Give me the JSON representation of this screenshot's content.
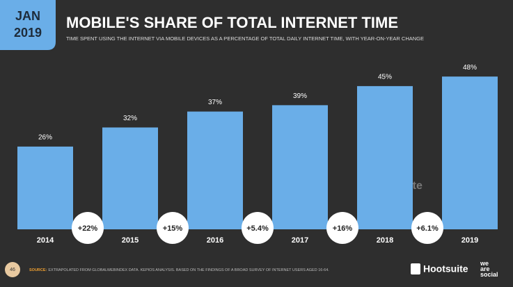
{
  "badge": {
    "month": "JAN",
    "year": "2019"
  },
  "chart_data": {
    "type": "bar",
    "title": "MOBILE'S SHARE OF TOTAL INTERNET TIME",
    "subtitle": "TIME SPENT USING THE INTERNET VIA MOBILE DEVICES AS A PERCENTAGE OF TOTAL DAILY INTERNET TIME, WITH YEAR-ON-YEAR CHANGE",
    "categories": [
      "2014",
      "2015",
      "2016",
      "2017",
      "2018",
      "2019"
    ],
    "values": [
      26,
      32,
      37,
      39,
      45,
      48
    ],
    "value_labels": [
      "26%",
      "32%",
      "37%",
      "39%",
      "45%",
      "48%"
    ],
    "changes": [
      "+22%",
      "+15%",
      "+5.4%",
      "+16%",
      "+6.1%"
    ],
    "color": "#6aaee8"
  },
  "footer": {
    "page": "46",
    "source_label": "SOURCE:",
    "source_text": "EXTRAPOLATED FROM GLOBALWEBINDEX DATA. KEPIOS ANALYSIS. BASED ON THE FINDINGS OF A BROAD SURVEY OF INTERNET USERS AGED 16-64.",
    "logo1": "Hootsuite",
    "logo2": "we are social"
  }
}
